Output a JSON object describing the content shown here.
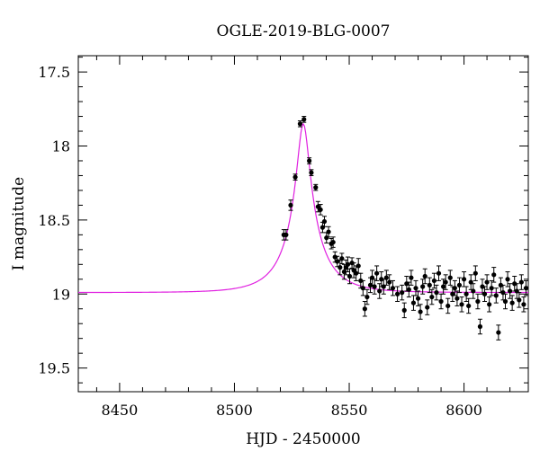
{
  "chart_data": {
    "type": "scatter",
    "title": "OGLE-2019-BLG-0007",
    "xlabel": "HJD - 2450000",
    "ylabel": "I magnitude",
    "xlim": [
      8432,
      8628
    ],
    "ylim": [
      19.66,
      17.39
    ],
    "y_inverted": true,
    "grid": false,
    "xticks": [
      8450,
      8500,
      8550,
      8600
    ],
    "yticks": [
      17.5,
      18,
      18.5,
      19,
      19.5
    ],
    "colors": {
      "model": "#e020e0",
      "points": "#000000"
    },
    "model": {
      "baseline": 18.99,
      "peak_mag": 17.85,
      "t0": 8530,
      "tE": 16,
      "u0": 0.16
    },
    "series": [
      {
        "x": [
          8521.5,
          8522.5,
          8524.5,
          8526.5,
          8528.6,
          8530.3,
          8532.6,
          8533.5,
          8535.4,
          8536.4,
          8537.5,
          8538.4,
          8539.2,
          8540.1,
          8541.0,
          8542.2,
          8543.0,
          8543.8,
          8544.8,
          8546.0,
          8546.8,
          8547.8,
          8548.6,
          8549.4,
          8550.2,
          8551.2,
          8552.0,
          8553.0,
          8554.0,
          8555.0,
          8556.0,
          8556.8,
          8557.8,
          8559.2,
          8560.0,
          8561.0,
          8562.0,
          8563.2,
          8564.0,
          8565.0,
          8566.2,
          8567.5,
          8569.0,
          8571.0,
          8573.0,
          8574.0,
          8575.0,
          8576.0,
          8577.0,
          8578.0,
          8579.0,
          8580.0,
          8581.0,
          8582.0,
          8583.0,
          8584.0,
          8585.0,
          8586.0,
          8587.0,
          8588.0,
          8589.0,
          8590.0,
          8591.0,
          8592.0,
          8593.0,
          8594.0,
          8595.0,
          8596.0,
          8597.0,
          8598.0,
          8599.0,
          8600.0,
          8601.0,
          8602.0,
          8603.0,
          8604.0,
          8605.0,
          8606.0,
          8607.0,
          8608.0,
          8609.0,
          8610.0,
          8611.0,
          8612.0,
          8613.0,
          8614.0,
          8615.0,
          8616.0,
          8617.0,
          8618.0,
          8619.0,
          8620.0,
          8621.0,
          8622.0,
          8623.0,
          8624.0,
          8625.0,
          8626.0,
          8627.0
        ],
        "y": [
          18.6,
          18.6,
          18.4,
          18.21,
          17.85,
          17.82,
          18.1,
          18.18,
          18.28,
          18.41,
          18.43,
          18.55,
          18.51,
          18.62,
          18.58,
          18.66,
          18.65,
          18.75,
          18.78,
          18.82,
          18.76,
          18.85,
          18.82,
          18.8,
          18.88,
          18.79,
          18.84,
          18.86,
          18.81,
          18.91,
          18.96,
          19.1,
          19.02,
          18.94,
          18.89,
          18.95,
          18.86,
          18.98,
          18.9,
          18.95,
          18.89,
          18.92,
          18.96,
          19.0,
          18.99,
          19.11,
          18.93,
          18.97,
          18.89,
          19.06,
          18.96,
          19.03,
          19.12,
          18.95,
          18.88,
          19.09,
          18.94,
          19.02,
          18.91,
          18.99,
          18.86,
          19.05,
          18.95,
          18.92,
          19.08,
          18.89,
          19.0,
          18.96,
          19.03,
          18.94,
          19.07,
          18.9,
          19.0,
          19.08,
          18.92,
          18.98,
          18.86,
          19.05,
          19.22,
          18.95,
          19.0,
          18.92,
          19.07,
          18.96,
          18.87,
          19.01,
          19.26,
          18.94,
          18.99,
          19.05,
          18.9,
          18.98,
          19.06,
          18.93,
          18.98,
          19.04,
          18.92,
          19.07,
          18.96
        ]
      }
    ]
  }
}
